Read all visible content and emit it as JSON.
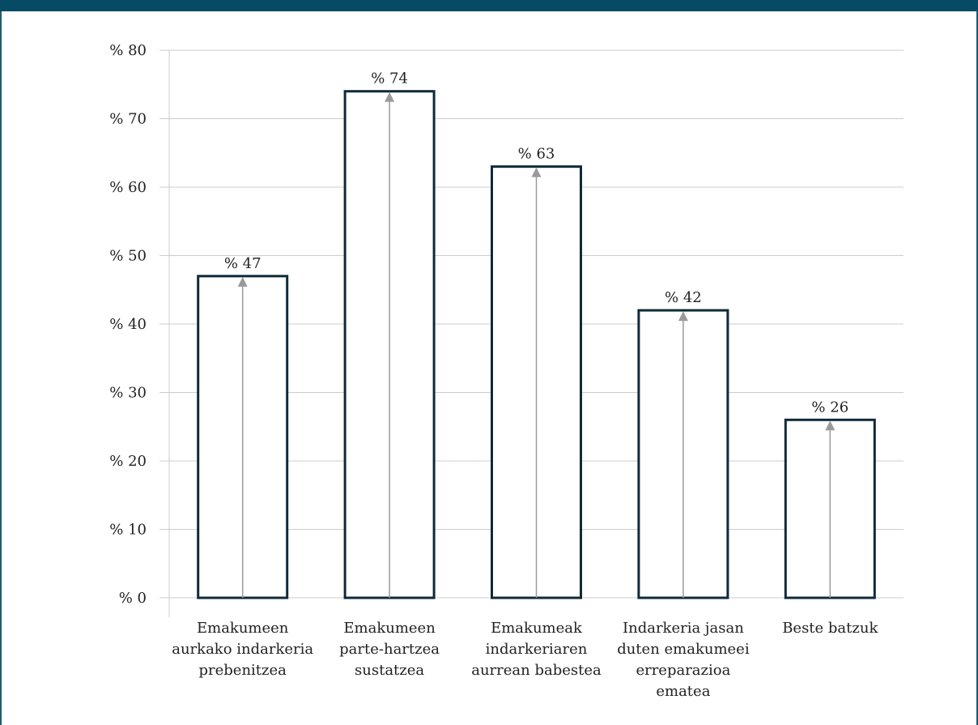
{
  "chart_data": {
    "type": "bar",
    "categories": [
      [
        "Emakumeen",
        "aurkako indarkeria",
        "prebenitzea"
      ],
      [
        "Emakumeen",
        "parte-hartzea",
        "sustatzea"
      ],
      [
        "Emakumeak",
        "indarkeriaren",
        "aurrean babestea"
      ],
      [
        "Indarkeria jasan",
        "duten emakumeei",
        "erreparazioa",
        "ematea"
      ],
      [
        "Beste batzuk"
      ]
    ],
    "values": [
      47,
      74,
      63,
      42,
      26
    ],
    "value_labels": [
      "% 47",
      "% 74",
      "% 63",
      "% 42",
      "% 26"
    ],
    "ylim": [
      0,
      80
    ],
    "yticks": [
      0,
      10,
      20,
      30,
      40,
      50,
      60,
      70,
      80
    ],
    "ytick_labels": [
      "% 0",
      "% 10",
      "% 20",
      "% 30",
      "% 40",
      "% 50",
      "% 60",
      "% 70",
      "% 80"
    ],
    "grid": true,
    "colors": {
      "bar_fill": "#ffffff",
      "bar_stroke": "#0f2a3a",
      "arrow": "#9a9a9a",
      "grid": "#cccccc",
      "header": "#064a66"
    }
  }
}
